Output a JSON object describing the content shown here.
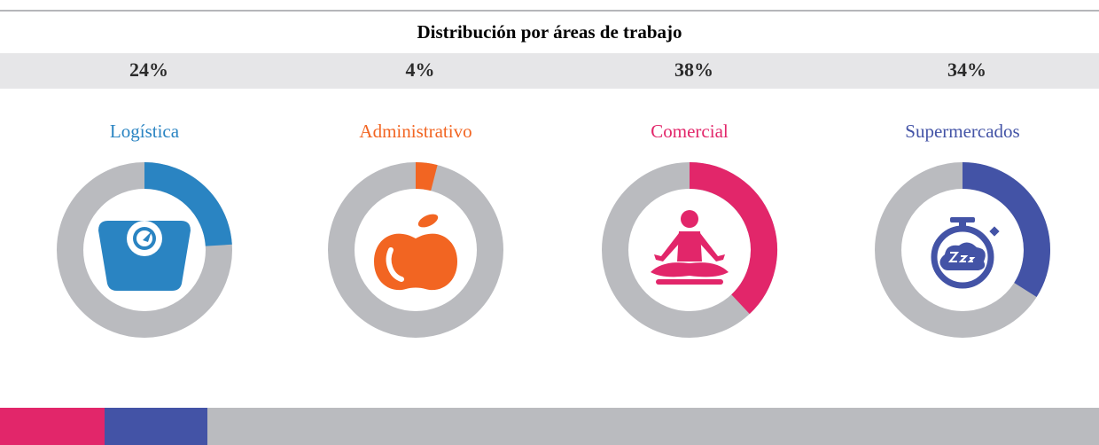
{
  "title": "Distribución por áreas de trabajo",
  "chart_data": [
    {
      "type": "donut",
      "title": "Logística",
      "values": [
        24
      ],
      "value_labels": [
        "24%"
      ],
      "color": "#2a84c2"
    },
    {
      "type": "donut",
      "title": "Administrativo",
      "values": [
        4
      ],
      "value_labels": [
        "4%"
      ],
      "color": "#f26522"
    },
    {
      "type": "donut",
      "title": "Comercial",
      "values": [
        38
      ],
      "value_labels": [
        "38%"
      ],
      "color": "#e2266a"
    },
    {
      "type": "donut",
      "title": "Supermercados",
      "values": [
        34
      ],
      "value_labels": [
        "34%"
      ],
      "color": "#4353a6"
    }
  ]
}
